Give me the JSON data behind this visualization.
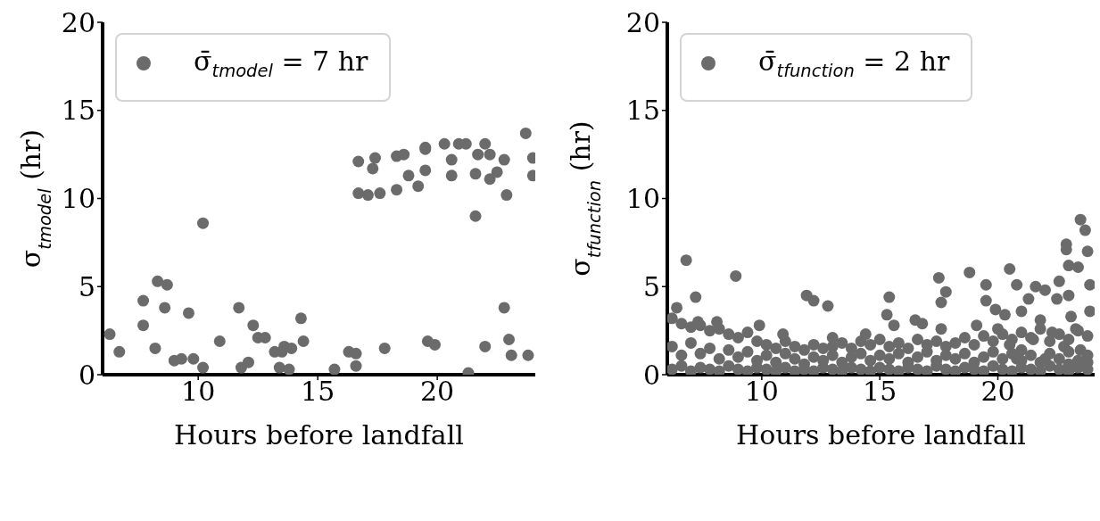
{
  "chart_data": [
    {
      "type": "scatter",
      "xlabel": "Hours before landfall",
      "ylabel": "σ$_{tmodel}$ (hr)",
      "xlim": [
        6,
        24.1
      ],
      "ylim": [
        0,
        20
      ],
      "xticks": [
        10,
        15,
        20
      ],
      "yticks": [
        0,
        5,
        10,
        15,
        20
      ],
      "legend": "top left",
      "marker": "circle",
      "series": [
        {
          "name": "σ̄$_{tmodel}$ = 7 hr",
          "color": "#6b6b6b",
          "x": [
            6.3,
            6.7,
            7.7,
            7.7,
            8.2,
            8.3,
            8.7,
            8.6,
            9.0,
            9.3,
            9.6,
            9.8,
            10.2,
            10.2,
            10.9,
            11.7,
            11.8,
            12.1,
            12.3,
            12.5,
            12.8,
            13.2,
            13.5,
            13.6,
            13.9,
            13.4,
            13.8,
            14.3,
            14.4,
            15.7,
            16.3,
            16.6,
            16.6,
            17.8,
            16.7,
            17.4,
            17.3,
            16.7,
            17.1,
            17.6,
            18.3,
            18.3,
            18.6,
            18.8,
            19.2,
            19.5,
            19.5,
            19.5,
            19.6,
            19.9,
            20.3,
            20.6,
            20.6,
            20.9,
            21.2,
            21.6,
            21.6,
            21.7,
            22.0,
            22.2,
            22.2,
            22.5,
            22.8,
            22.9,
            22.8,
            23.0,
            23.1,
            22.0,
            21.3,
            23.7,
            24.0,
            24.0,
            23.8
          ],
          "values": [
            2.3,
            1.3,
            4.2,
            2.8,
            1.5,
            5.3,
            5.1,
            3.8,
            0.8,
            0.9,
            3.5,
            0.9,
            8.6,
            0.4,
            1.9,
            3.8,
            0.4,
            0.7,
            2.8,
            2.1,
            2.1,
            1.3,
            1.3,
            1.6,
            1.5,
            0.4,
            0.3,
            3.2,
            1.9,
            0.3,
            1.3,
            1.2,
            0.5,
            1.5,
            12.1,
            12.3,
            11.7,
            10.3,
            10.2,
            10.3,
            10.5,
            12.4,
            12.5,
            11.3,
            10.7,
            11.6,
            12.9,
            12.8,
            1.9,
            1.7,
            13.1,
            12.2,
            11.3,
            13.1,
            13.1,
            9.0,
            11.4,
            12.5,
            13.1,
            12.5,
            11.1,
            11.5,
            12.2,
            10.2,
            3.8,
            2.0,
            1.1,
            1.6,
            0.1,
            13.7,
            12.3,
            11.3,
            1.1
          ]
        }
      ]
    },
    {
      "type": "scatter",
      "xlabel": "Hours before landfall",
      "ylabel": "σ$_{tfunction}$ (hr)",
      "xlim": [
        6,
        24.1
      ],
      "ylim": [
        0,
        20
      ],
      "xticks": [
        10,
        15,
        20
      ],
      "yticks": [
        0,
        5,
        10,
        15,
        20
      ],
      "legend": "top left",
      "marker": "circle",
      "series": [
        {
          "name": "σ̄$_{tfunction}$ = 2 hr",
          "color": "#6b6b6b",
          "x": [
            6.8,
            7.2,
            6.4,
            8.9,
            11.9,
            12.2,
            12.8,
            8.1,
            9.9,
            7.3,
            10.9,
            13.0,
            14.4,
            15.4,
            17.5,
            17.8,
            17.6,
            18.8,
            19.5,
            19.5,
            20.5,
            23.5,
            23.7,
            22.9,
            22.9,
            23.8,
            23.0,
            23.4,
            20.8,
            21.6,
            22.0,
            22.6,
            21.3,
            19.9,
            20.3,
            21.0,
            22.5,
            23.0,
            23.9,
            23.9,
            15.3,
            15.6,
            16.5,
            16.8,
            17.6,
            19.1,
            21.8,
            23.1,
            23.3,
            22.3,
            21.5,
            21.0,
            22.8,
            23.5,
            22.0,
            20.8,
            23.8,
            23.0,
            20.0,
            20.5,
            6.2,
            6.2,
            6.2,
            6.6,
            6.6,
            6.6,
            7.0,
            7.0,
            7.0,
            7.4,
            7.4,
            7.4,
            7.8,
            7.8,
            7.8,
            8.2,
            8.2,
            8.2,
            8.6,
            8.6,
            8.6,
            9.0,
            9.0,
            9.0,
            9.4,
            9.4,
            9.4,
            9.8,
            9.8,
            9.8,
            10.2,
            10.2,
            10.2,
            10.6,
            10.6,
            10.6,
            11.0,
            11.0,
            11.0,
            11.4,
            11.4,
            11.4,
            11.8,
            11.8,
            11.8,
            12.2,
            12.2,
            12.2,
            12.6,
            12.6,
            12.6,
            13.0,
            13.0,
            13.0,
            13.4,
            13.4,
            13.4,
            13.8,
            13.8,
            13.8,
            14.2,
            14.2,
            14.2,
            14.6,
            14.6,
            14.6,
            15.0,
            15.0,
            15.0,
            15.4,
            15.4,
            15.4,
            15.8,
            15.8,
            15.8,
            16.2,
            16.2,
            16.2,
            16.6,
            16.6,
            16.6,
            17.0,
            17.0,
            17.0,
            17.4,
            17.4,
            17.4,
            17.8,
            17.8,
            17.8,
            18.2,
            18.2,
            18.2,
            18.6,
            18.6,
            18.6,
            19.0,
            19.0,
            19.0,
            19.4,
            19.4,
            19.4,
            19.8,
            19.8,
            19.8,
            20.2,
            20.2,
            20.2,
            20.6,
            20.6,
            20.6,
            21.0,
            21.0,
            21.0,
            21.4,
            21.4,
            21.4,
            21.8,
            21.8,
            21.8,
            22.2,
            22.2,
            22.2,
            22.6,
            22.6,
            22.6,
            23.0,
            23.0,
            23.0,
            23.4,
            23.4,
            23.4,
            23.8,
            23.8,
            23.8
          ],
          "values": [
            6.5,
            4.4,
            3.8,
            5.6,
            4.5,
            4.2,
            3.9,
            3.0,
            2.8,
            3.0,
            2.3,
            2.1,
            2.3,
            4.4,
            5.5,
            4.7,
            4.1,
            5.8,
            5.1,
            4.2,
            6.0,
            8.8,
            8.2,
            7.4,
            7.1,
            7.0,
            6.2,
            6.1,
            5.1,
            5.0,
            4.8,
            5.3,
            4.3,
            3.7,
            3.4,
            3.6,
            4.3,
            4.5,
            3.6,
            5.1,
            3.4,
            2.8,
            3.1,
            2.9,
            2.6,
            2.8,
            3.1,
            3.3,
            2.6,
            2.4,
            2.0,
            1.4,
            1.6,
            1.4,
            0.9,
            0.9,
            0.7,
            0.6,
            2.6,
            1.7,
            3.2,
            1.6,
            0.3,
            2.9,
            1.1,
            0.5,
            2.7,
            1.8,
            0.2,
            2.8,
            1.2,
            0.4,
            2.5,
            1.5,
            0.3,
            2.6,
            0.9,
            0.2,
            2.3,
            1.4,
            0.5,
            2.1,
            1.0,
            0.3,
            2.4,
            1.3,
            0.2,
            1.9,
            0.8,
            0.4,
            1.7,
            1.1,
            0.3,
            1.5,
            0.7,
            0.2,
            1.9,
            1.2,
            0.4,
            1.6,
            0.9,
            0.2,
            1.4,
            0.6,
            0.3,
            1.7,
            1.0,
            0.2,
            1.5,
            0.8,
            0.4,
            1.6,
            1.1,
            0.3,
            1.8,
            0.7,
            0.2,
            1.5,
            1.0,
            0.4,
            1.9,
            1.2,
            0.3,
            1.7,
            0.8,
            0.2,
            2.0,
            1.1,
            0.4,
            1.6,
            0.9,
            0.3,
            1.8,
            1.2,
            0.2,
            1.5,
            0.7,
            0.4,
            2.0,
            1.0,
            0.3,
            1.7,
            1.3,
            0.2,
            1.9,
            0.8,
            0.5,
            1.6,
            1.1,
            0.3,
            1.8,
            0.9,
            0.2,
            2.1,
            1.2,
            0.4,
            1.7,
            0.7,
            0.3,
            2.2,
            1.0,
            0.2,
            1.9,
            1.3,
            0.5,
            2.3,
            0.9,
            0.3,
            2.0,
            1.2,
            0.2,
            2.4,
            0.8,
            0.4,
            2.1,
            1.1,
            0.3,
            2.6,
            0.7,
            0.2,
            1.9,
            1.2,
            0.5,
            2.3,
            0.9,
            0.3,
            2.0,
            1.3,
            0.2,
            2.5,
            0.8,
            0.4,
            2.2,
            1.1,
            0.3
          ]
        }
      ]
    }
  ]
}
